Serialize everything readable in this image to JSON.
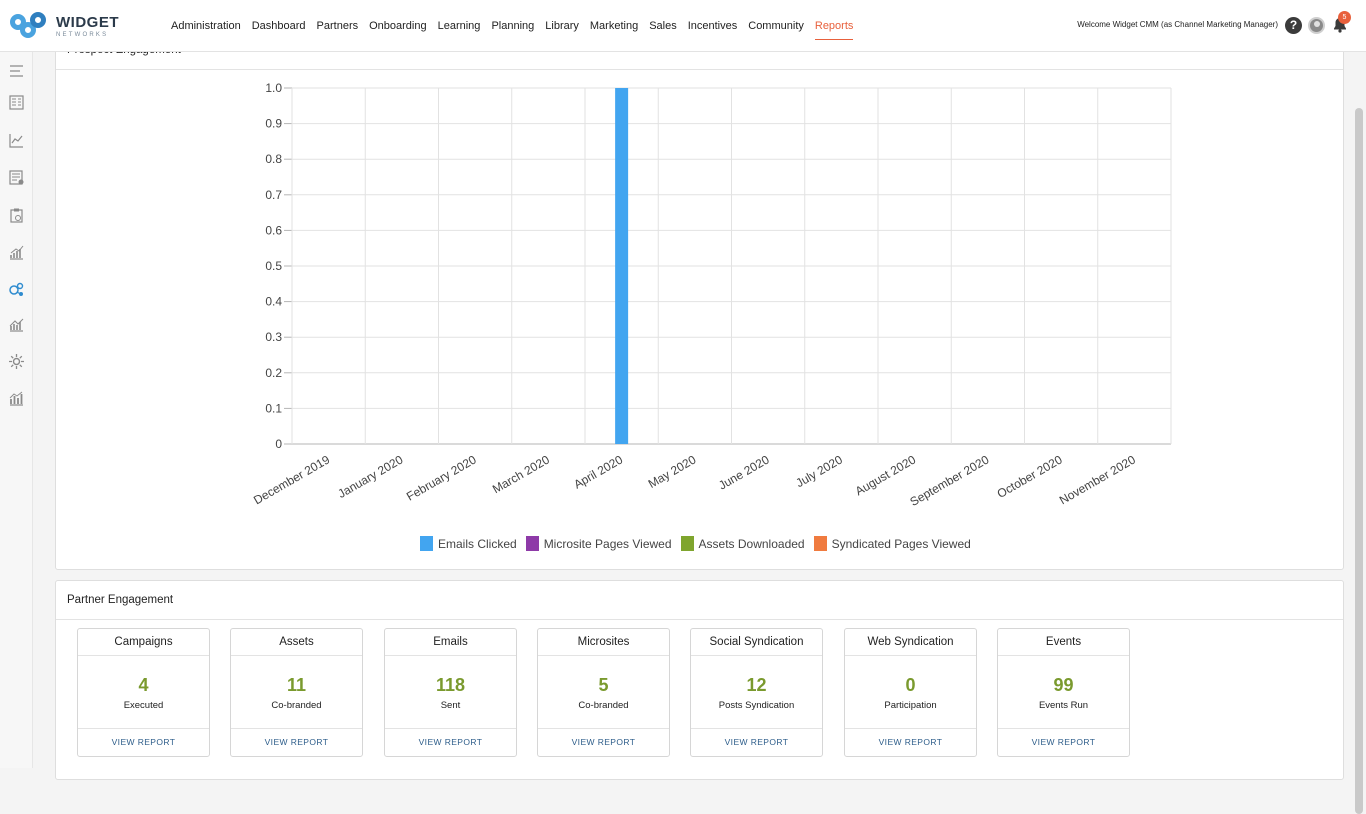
{
  "brand": {
    "name": "WIDGET",
    "subtitle": "NETWORKS"
  },
  "nav": {
    "items": [
      {
        "label": "Administration",
        "active": false
      },
      {
        "label": "Dashboard",
        "active": false
      },
      {
        "label": "Partners",
        "active": false
      },
      {
        "label": "Onboarding",
        "active": false
      },
      {
        "label": "Learning",
        "active": false
      },
      {
        "label": "Planning",
        "active": false
      },
      {
        "label": "Library",
        "active": false
      },
      {
        "label": "Marketing",
        "active": false
      },
      {
        "label": "Sales",
        "active": false
      },
      {
        "label": "Incentives",
        "active": false
      },
      {
        "label": "Community",
        "active": false
      },
      {
        "label": "Reports",
        "active": true
      }
    ],
    "active_color": "#e8603c"
  },
  "header": {
    "welcome": "Welcome Widget CMM (as Channel Marketing Manager)",
    "help_icon": "help-icon",
    "avatar_icon": "avatar",
    "bell_icon": "bell-icon",
    "notification_count": "5"
  },
  "sidebar": {
    "icons": [
      "menu-icon",
      "report-grid-icon",
      "line-chart-icon",
      "report-list-icon",
      "clipboard-icon",
      "growth-chart-icon",
      "network-analytics-icon",
      "trend-chart-icon",
      "settings-gear-icon",
      "bar-analytics-icon"
    ],
    "active_index": 6
  },
  "prospect": {
    "title": "Prospect Engagement"
  },
  "chart_data": {
    "type": "bar",
    "title": "Prospect Engagement",
    "categories": [
      "December 2019",
      "January 2020",
      "February 2020",
      "March 2020",
      "April 2020",
      "May 2020",
      "June 2020",
      "July 2020",
      "August 2020",
      "September 2020",
      "October 2020",
      "November 2020"
    ],
    "series": [
      {
        "name": "Emails Clicked",
        "color": "#42a5f0",
        "values": [
          0,
          0,
          0,
          0,
          1,
          0,
          0,
          0,
          0,
          0,
          0,
          0
        ]
      },
      {
        "name": "Microsite Pages Viewed",
        "color": "#8e3aa8",
        "values": [
          0,
          0,
          0,
          0,
          0,
          0,
          0,
          0,
          0,
          0,
          0,
          0
        ]
      },
      {
        "name": "Assets Downloaded",
        "color": "#7fa52e",
        "values": [
          0,
          0,
          0,
          0,
          0,
          0,
          0,
          0,
          0,
          0,
          0,
          0
        ]
      },
      {
        "name": "Syndicated Pages Viewed",
        "color": "#f07b3f",
        "values": [
          0,
          0,
          0,
          0,
          0,
          0,
          0,
          0,
          0,
          0,
          0,
          0
        ]
      }
    ],
    "yticks": [
      "0",
      "0.1",
      "0.2",
      "0.3",
      "0.4",
      "0.5",
      "0.6",
      "0.7",
      "0.8",
      "0.9",
      "1.0"
    ],
    "ylim": [
      0,
      1
    ],
    "grid": true,
    "legend": "bottom"
  },
  "partner": {
    "title": "Partner Engagement",
    "tiles": [
      {
        "title": "Campaigns",
        "value": "4",
        "sub": "Executed",
        "link": "VIEW REPORT"
      },
      {
        "title": "Assets",
        "value": "11",
        "sub": "Co-branded",
        "link": "VIEW REPORT"
      },
      {
        "title": "Emails",
        "value": "118",
        "sub": "Sent",
        "link": "VIEW REPORT"
      },
      {
        "title": "Microsites",
        "value": "5",
        "sub": "Co-branded",
        "link": "VIEW REPORT"
      },
      {
        "title": "Social Syndication",
        "value": "12",
        "sub": "Posts Syndication",
        "link": "VIEW REPORT"
      },
      {
        "title": "Web Syndication",
        "value": "0",
        "sub": "Participation",
        "link": "VIEW REPORT"
      },
      {
        "title": "Events",
        "value": "99",
        "sub": "Events Run",
        "link": "VIEW REPORT"
      }
    ]
  }
}
